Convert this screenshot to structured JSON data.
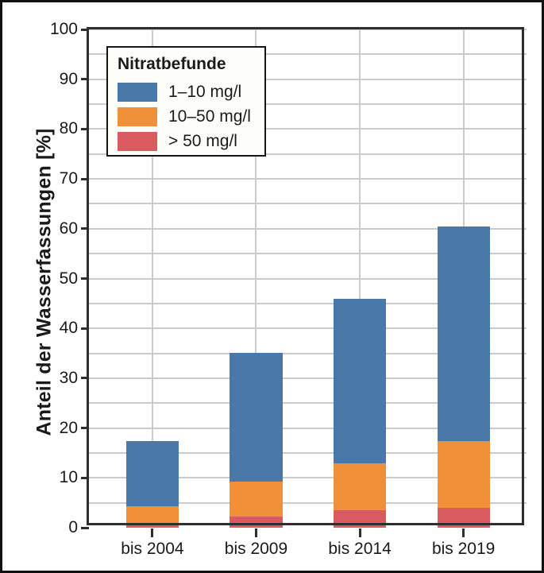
{
  "chart_data": {
    "type": "bar",
    "stacked": true,
    "title": "",
    "xlabel": "",
    "ylabel": "Anteil der Wasserfassungen [%]",
    "ylim": [
      0,
      100
    ],
    "yticks": [
      0,
      10,
      20,
      30,
      40,
      50,
      60,
      70,
      80,
      90,
      100
    ],
    "minor_grid_step": 5,
    "grid": true,
    "categories": [
      "bis 2004",
      "bis 2009",
      "bis 2014",
      "bis 2019"
    ],
    "series": [
      {
        "name": "1–10 mg/l",
        "color": "#4a78a8",
        "values": [
          13.1,
          25.9,
          33.1,
          43.1
        ]
      },
      {
        "name": "10–50 mg/l",
        "color": "#f0913a",
        "values": [
          3.3,
          6.9,
          9.4,
          13.4
        ]
      },
      {
        "name": "> 50 mg/l",
        "color": "#d95a5f",
        "values": [
          1.0,
          2.3,
          3.5,
          4.0
        ]
      }
    ],
    "stack_order_bottom_to_top": [
      "> 50 mg/l",
      "10–50 mg/l",
      "1–10 mg/l"
    ],
    "stack_totals": [
      17.4,
      35.1,
      46.0,
      60.5
    ],
    "legend": {
      "title": "Nitratbefunde",
      "position": "upper left"
    },
    "colors": {
      "grid": "#cbcbcb",
      "axis_frame": "#2e2e2e",
      "text": "#1a1a1a",
      "background": "#ffffff",
      "outer_border": "#111111"
    }
  }
}
